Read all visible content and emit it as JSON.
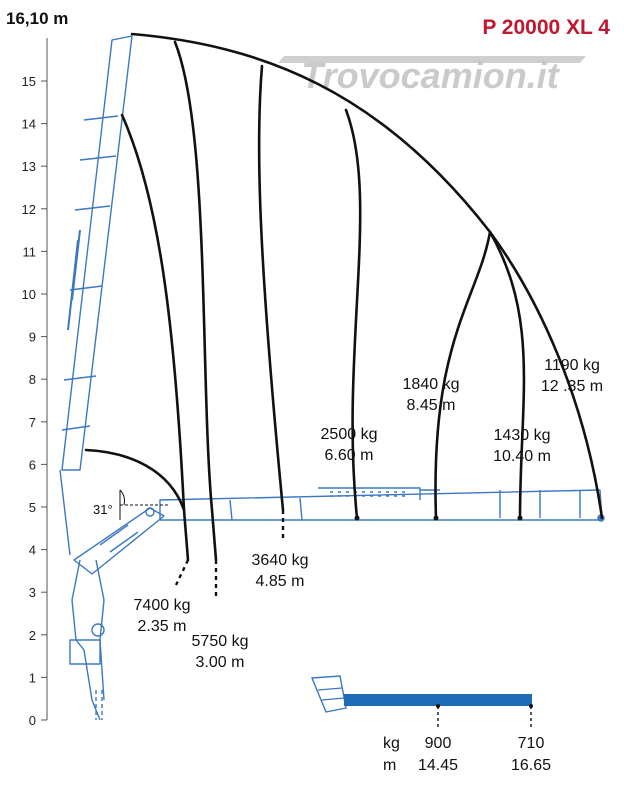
{
  "header": {
    "model_title": "P 20000 XL 4",
    "height_label": "16,10 m",
    "watermark": "Trovocamion.it"
  },
  "colors": {
    "title_red": "#c0182f",
    "crane_blue": "#3b78c2",
    "ext_blue": "#1e6bb8",
    "curve_black": "#111111",
    "axis_gray": "#555555"
  },
  "chart_data": {
    "type": "diagram",
    "yaxis": {
      "ticks": [
        "0",
        "1",
        "2",
        "3",
        "4",
        "5",
        "6",
        "7",
        "8",
        "9",
        "10",
        "11",
        "12",
        "13",
        "14",
        "15"
      ],
      "max_label": "16,10 m"
    },
    "angle_label": "31°",
    "load_points": [
      {
        "kg": "7400 kg",
        "m": "2.35 m"
      },
      {
        "kg": "5750 kg",
        "m": "3.00 m"
      },
      {
        "kg": "3640 kg",
        "m": "4.85 m"
      },
      {
        "kg": "2500 kg",
        "m": "6.60 m"
      },
      {
        "kg": "1840 kg",
        "m": "8.45 m"
      },
      {
        "kg": "1430 kg",
        "m": "10.40 m"
      },
      {
        "kg": "1190 kg",
        "m": "12 .35 m"
      }
    ],
    "extension": {
      "unit_kg": "kg",
      "unit_m": "m",
      "points": [
        {
          "kg": "900",
          "m": "14.45"
        },
        {
          "kg": "710",
          "m": "16.65"
        }
      ]
    }
  }
}
